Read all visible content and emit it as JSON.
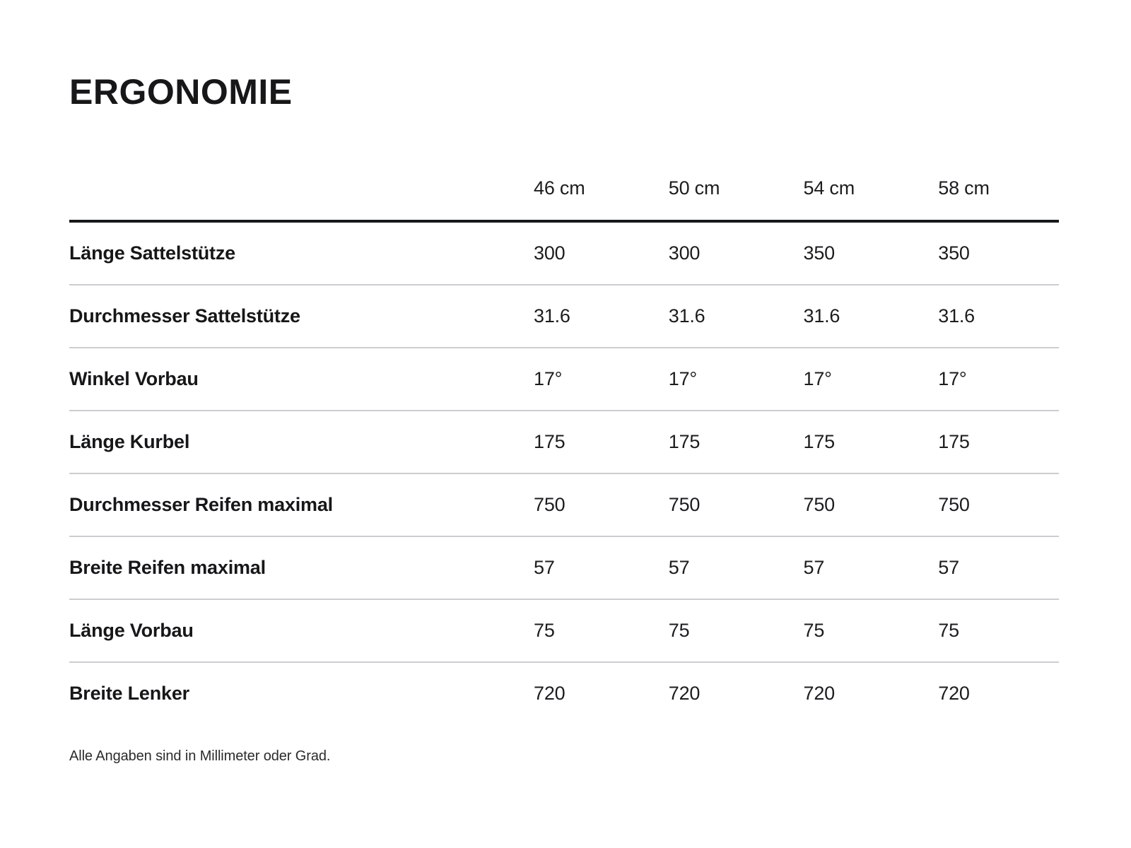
{
  "page": {
    "title": "ERGONOMIE",
    "footnote": "Alle Angaben sind in Millimeter oder Grad."
  },
  "colors": {
    "background": "#ffffff",
    "text": "#1c1d1f",
    "header_rule": "#17181a",
    "row_divider": "#cbcdd3"
  },
  "table": {
    "columns": [
      "46 cm",
      "50 cm",
      "54 cm",
      "58 cm"
    ],
    "rows": [
      {
        "label": "Länge Sattelstütze",
        "values": [
          "300",
          "300",
          "350",
          "350"
        ]
      },
      {
        "label": "Durchmesser Sattelstütze",
        "values": [
          "31.6",
          "31.6",
          "31.6",
          "31.6"
        ]
      },
      {
        "label": "Winkel Vorbau",
        "values": [
          "17°",
          "17°",
          "17°",
          "17°"
        ]
      },
      {
        "label": "Länge Kurbel",
        "values": [
          "175",
          "175",
          "175",
          "175"
        ]
      },
      {
        "label": "Durchmesser Reifen maximal",
        "values": [
          "750",
          "750",
          "750",
          "750"
        ]
      },
      {
        "label": "Breite Reifen maximal",
        "values": [
          "57",
          "57",
          "57",
          "57"
        ]
      },
      {
        "label": "Länge Vorbau",
        "values": [
          "75",
          "75",
          "75",
          "75"
        ]
      },
      {
        "label": "Breite Lenker",
        "values": [
          "720",
          "720",
          "720",
          "720"
        ]
      }
    ]
  }
}
